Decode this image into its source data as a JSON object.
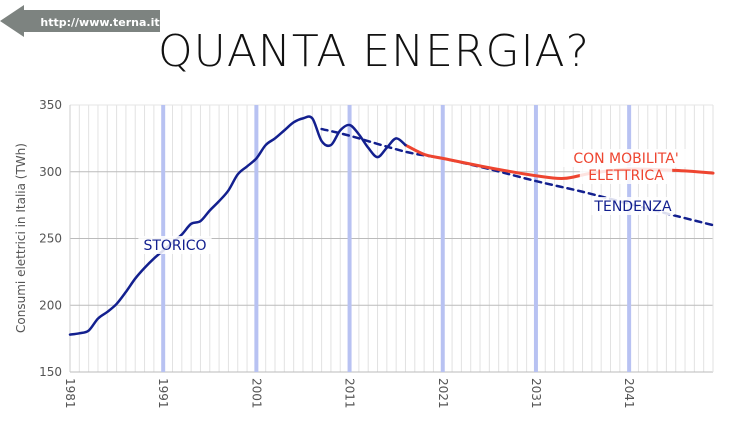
{
  "link": {
    "text": "http://www.terna.it"
  },
  "title": "QUANTA ENERGIA?",
  "colors": {
    "history": "#13208f",
    "trend": "#13208f",
    "electric": "#ee4530",
    "major_grid": "#b8c2f2",
    "arrow": "#7d8380"
  },
  "chart_data": {
    "type": "line",
    "title": "QUANTA ENERGIA?",
    "xlabel": "",
    "ylabel": "Consumi elettrici in Italia (TWh)",
    "xlim": [
      1981,
      2050
    ],
    "ylim": [
      150,
      350
    ],
    "yticks": [
      150,
      200,
      250,
      300,
      350
    ],
    "xticks": [
      1981,
      1991,
      2001,
      2011,
      2021,
      2031,
      2041
    ],
    "grid": true,
    "series": [
      {
        "name": "STORICO",
        "style": "solid",
        "x": [
          1981,
          1982,
          1983,
          1984,
          1985,
          1986,
          1987,
          1988,
          1989,
          1990,
          1991,
          1992,
          1993,
          1994,
          1995,
          1996,
          1997,
          1998,
          1999,
          2000,
          2001,
          2002,
          2003,
          2004,
          2005,
          2006,
          2007,
          2008,
          2009,
          2010,
          2011,
          2012,
          2013,
          2014,
          2015,
          2016,
          2017
        ],
        "y": [
          178,
          179,
          181,
          190,
          195,
          201,
          210,
          220,
          228,
          235,
          241,
          247,
          253,
          261,
          263,
          271,
          278,
          286,
          298,
          304,
          310,
          320,
          325,
          331,
          337,
          340,
          340,
          323,
          320,
          331,
          335,
          328,
          318,
          311,
          318,
          325,
          320
        ]
      },
      {
        "name": "TENDENZA",
        "style": "dashed",
        "x": [
          2008,
          2011,
          2017,
          2021,
          2026,
          2031,
          2036,
          2041,
          2046,
          2050
        ],
        "y": [
          332,
          327,
          315,
          310,
          302,
          293,
          285,
          276,
          267,
          260
        ]
      },
      {
        "name": "CON MOBILITA' ELETTRICA",
        "style": "solid",
        "x": [
          2017,
          2019,
          2021,
          2026,
          2031,
          2034,
          2037,
          2041,
          2046,
          2050
        ],
        "y": [
          320,
          313,
          310,
          303,
          297,
          295,
          299,
          302,
          301,
          299
        ]
      }
    ]
  }
}
